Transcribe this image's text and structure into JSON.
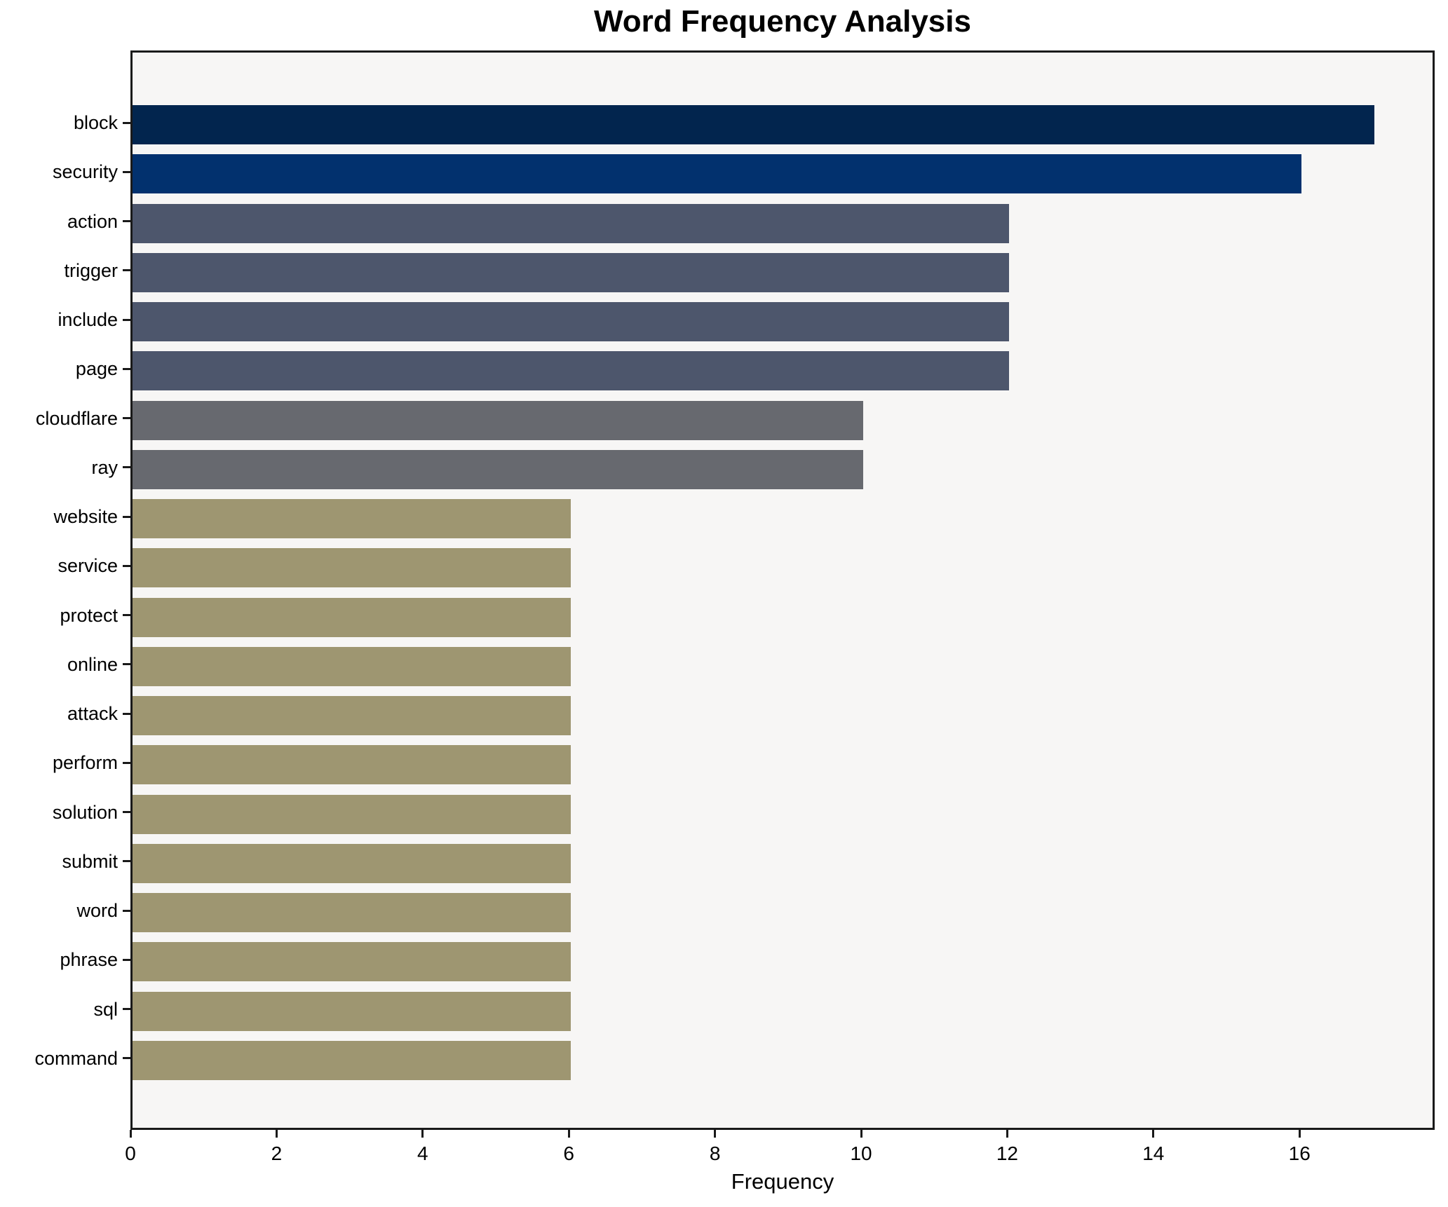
{
  "chart_data": {
    "type": "bar",
    "orientation": "horizontal",
    "title": "Word Frequency Analysis",
    "xlabel": "Frequency",
    "ylabel": "",
    "categories": [
      "block",
      "security",
      "action",
      "trigger",
      "include",
      "page",
      "cloudflare",
      "ray",
      "website",
      "service",
      "protect",
      "online",
      "attack",
      "perform",
      "solution",
      "submit",
      "word",
      "phrase",
      "sql",
      "command"
    ],
    "values": [
      17,
      16,
      12,
      12,
      12,
      12,
      10,
      10,
      6,
      6,
      6,
      6,
      6,
      6,
      6,
      6,
      6,
      6,
      6,
      6
    ],
    "colors": [
      "#02254e",
      "#02316e",
      "#4d566c",
      "#4d566c",
      "#4d566c",
      "#4d566c",
      "#67696f",
      "#67696f",
      "#9e9671",
      "#9e9671",
      "#9e9671",
      "#9e9671",
      "#9e9671",
      "#9e9671",
      "#9e9671",
      "#9e9671",
      "#9e9671",
      "#9e9671",
      "#9e9671",
      "#9e9671"
    ],
    "xlim": [
      0,
      17.85
    ],
    "xticks": [
      0,
      2,
      4,
      6,
      8,
      10,
      12,
      14,
      16
    ],
    "grid": false,
    "legend": false,
    "plot_background": "#f7f6f5",
    "figure_background": "#ffffff",
    "spine_color": "#1a1a1a"
  }
}
